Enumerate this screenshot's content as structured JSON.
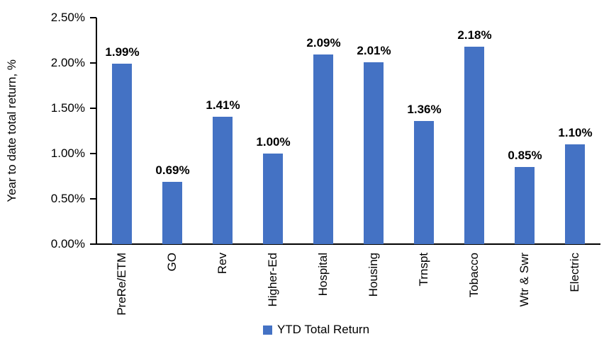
{
  "chart_data": {
    "type": "bar",
    "title": "",
    "xlabel": "",
    "ylabel": "Year to date total return, %",
    "categories": [
      "PreRe/ETM",
      "GO",
      "Rev",
      "Higher-Ed",
      "Hospital",
      "Housing",
      "Trnspt",
      "Tobacco",
      "Wtr & Swr",
      "Electric"
    ],
    "values": [
      1.99,
      0.69,
      1.41,
      1.0,
      2.09,
      2.01,
      1.36,
      2.18,
      0.85,
      1.1
    ],
    "value_labels": [
      "1.99%",
      "0.69%",
      "1.41%",
      "1.00%",
      "2.09%",
      "2.01%",
      "1.36%",
      "2.18%",
      "0.85%",
      "1.10%"
    ],
    "ylim": [
      0,
      2.5
    ],
    "ytick_values": [
      0.0,
      0.5,
      1.0,
      1.5,
      2.0,
      2.5
    ],
    "ytick_labels": [
      "0.00%",
      "0.50%",
      "1.00%",
      "1.50%",
      "2.00%",
      "2.50%"
    ],
    "grid": false,
    "legend_position": "bottom",
    "legend": {
      "label": "YTD Total Return",
      "swatch_color": "#4472C4"
    },
    "bar_color": "#4472C4",
    "axis_color": "#000000"
  }
}
